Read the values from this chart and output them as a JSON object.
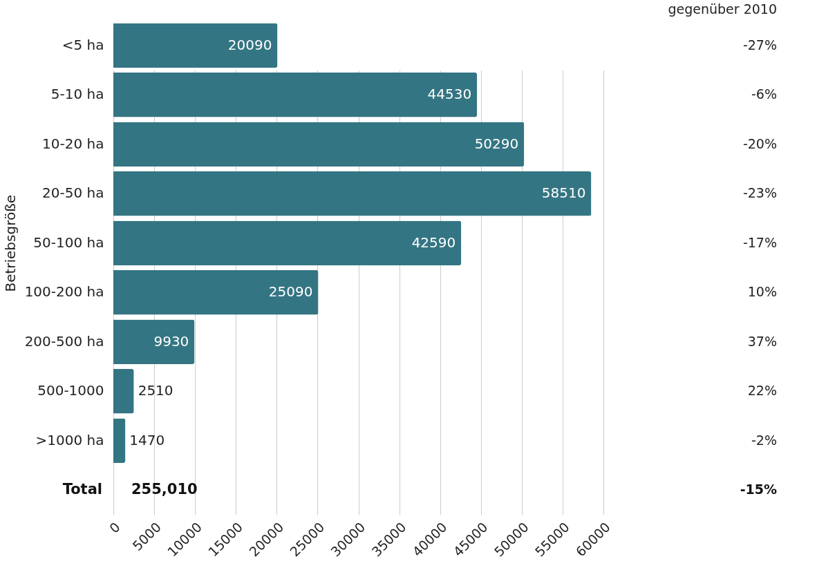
{
  "chart_data": {
    "type": "bar",
    "orientation": "horizontal",
    "ylabel": "Betriebsgröße",
    "categories": [
      "<5 ha",
      "5-10 ha",
      "10-20 ha",
      "20-50 ha",
      "50-100 ha",
      "100-200 ha",
      "200-500 ha",
      "500-1000",
      ">1000 ha"
    ],
    "values": [
      20090,
      44530,
      50290,
      58510,
      42590,
      25090,
      9930,
      2510,
      1470
    ],
    "color": "#347583",
    "data_labels": true,
    "xlim": [
      0,
      60000
    ],
    "xticks": [
      0,
      5000,
      10000,
      15000,
      20000,
      25000,
      30000,
      35000,
      40000,
      45000,
      50000,
      55000,
      60000
    ],
    "grid": "x",
    "annotations": [
      "Total",
      "255,010",
      "gegenüber 2010",
      "-27%",
      "-6%",
      "-20%",
      "-23%",
      "-17%",
      "10%",
      "37%",
      "22%",
      "-2%",
      "-15%"
    ]
  }
}
